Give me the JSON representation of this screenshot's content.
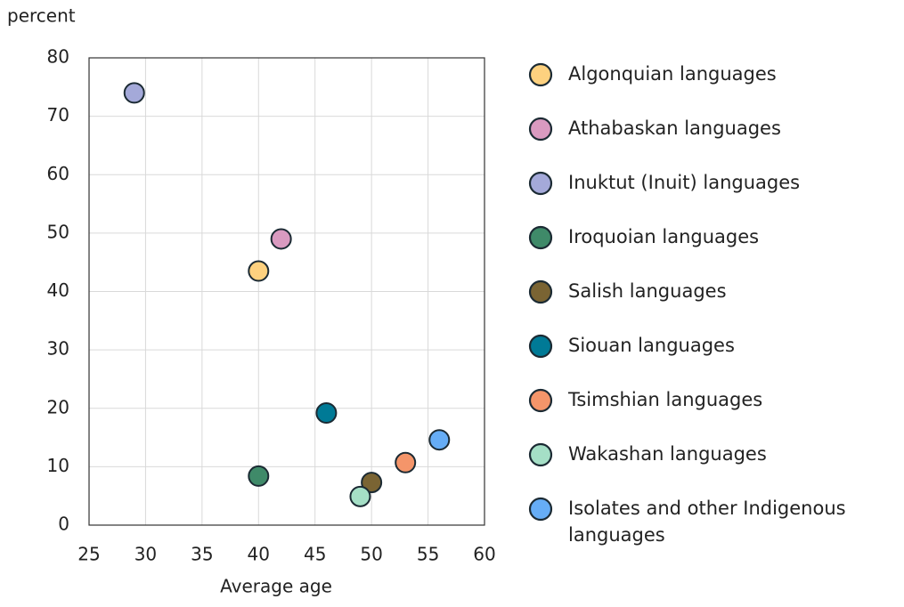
{
  "chart_data": {
    "type": "scatter",
    "y_axis_label": "percent",
    "x_axis_label": "Average age",
    "xlim": [
      25,
      60
    ],
    "xticks": [
      25,
      30,
      35,
      40,
      45,
      50,
      55,
      60
    ],
    "ylim": [
      0,
      80
    ],
    "yticks": [
      0,
      10,
      20,
      30,
      40,
      50,
      60,
      70,
      80
    ],
    "grid": true,
    "legend": "right",
    "series": [
      {
        "name": "Algonquian languages",
        "color": "#fdd17f",
        "x": [
          40
        ],
        "y": [
          43.5
        ]
      },
      {
        "name": "Athabaskan languages",
        "color": "#d99ac0",
        "x": [
          42
        ],
        "y": [
          49
        ]
      },
      {
        "name": "Inuktut (Inuit) languages",
        "color": "#a4a9d9",
        "x": [
          29
        ],
        "y": [
          74
        ]
      },
      {
        "name": "Iroquoian languages",
        "color": "#3f8a69",
        "x": [
          40
        ],
        "y": [
          8.4
        ]
      },
      {
        "name": "Salish languages",
        "color": "#7a6433",
        "x": [
          50
        ],
        "y": [
          7.3
        ]
      },
      {
        "name": "Siouan languages",
        "color": "#007a96",
        "x": [
          46
        ],
        "y": [
          19.2
        ]
      },
      {
        "name": "Tsimshian languages",
        "color": "#f4956a",
        "x": [
          53
        ],
        "y": [
          10.7
        ]
      },
      {
        "name": "Wakashan languages",
        "color": "#a5dfc6",
        "x": [
          49
        ],
        "y": [
          4.9
        ]
      },
      {
        "name": "Isolates and other Indigenous languages",
        "color": "#66adf6",
        "x": [
          56
        ],
        "y": [
          14.6
        ]
      }
    ]
  }
}
